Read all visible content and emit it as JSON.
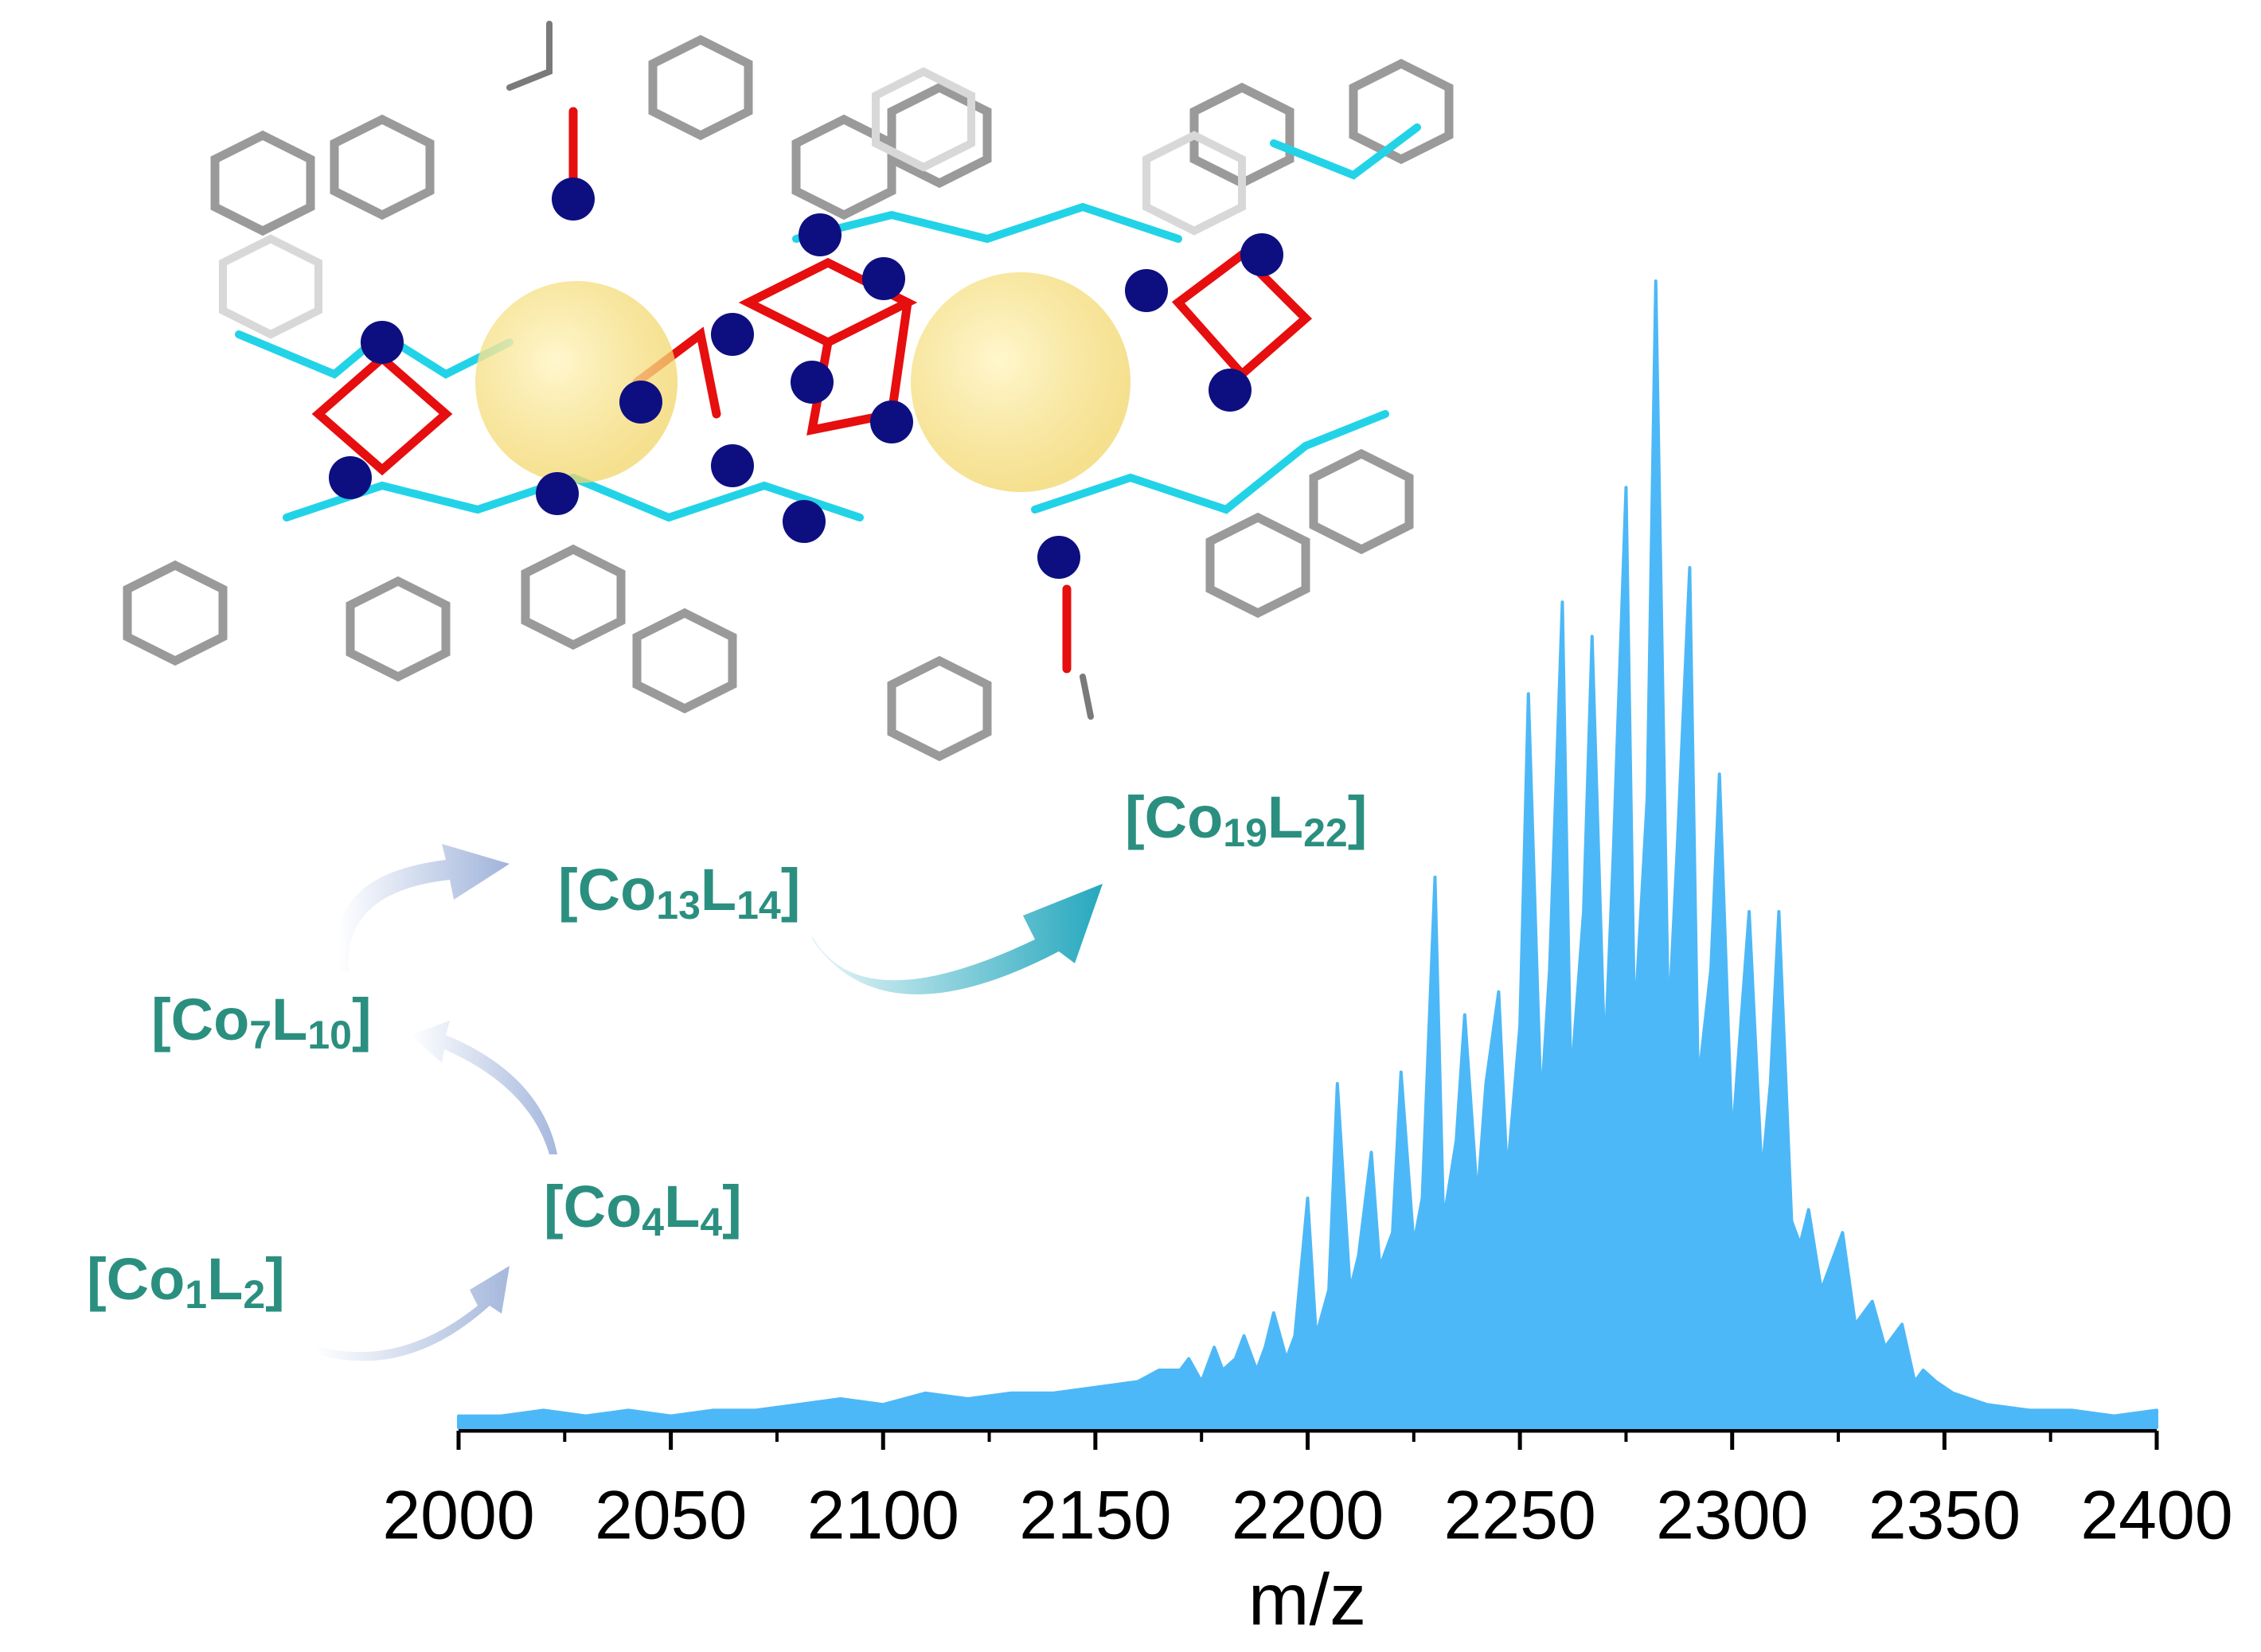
{
  "chart_data": {
    "type": "area",
    "xlabel": "m/z",
    "color": "#4db8f7",
    "xlim": [
      2000,
      2400
    ],
    "ylim": [
      0,
      100
    ],
    "xticks": [
      2000,
      2050,
      2100,
      2150,
      2200,
      2250,
      2300,
      2350,
      2400
    ],
    "xminorticks": [
      2025,
      2075,
      2125,
      2175,
      2225,
      2275,
      2325,
      2375
    ],
    "x": [
      2000,
      2010,
      2020,
      2030,
      2040,
      2050,
      2060,
      2070,
      2080,
      2090,
      2100,
      2110,
      2120,
      2130,
      2140,
      2150,
      2160,
      2165,
      2170,
      2172,
      2175,
      2178,
      2180,
      2183,
      2185,
      2188,
      2190,
      2192,
      2195,
      2197,
      2200,
      2202,
      2205,
      2207,
      2210,
      2212,
      2215,
      2217,
      2220,
      2222,
      2225,
      2227,
      2230,
      2232,
      2235,
      2237,
      2240,
      2242,
      2245,
      2247,
      2250,
      2252,
      2255,
      2257,
      2260,
      2262,
      2265,
      2267,
      2270,
      2272,
      2275,
      2277,
      2280,
      2282,
      2285,
      2287,
      2290,
      2292,
      2295,
      2297,
      2300,
      2302,
      2304,
      2307,
      2309,
      2311,
      2314,
      2316,
      2318,
      2321,
      2323,
      2326,
      2329,
      2331,
      2333,
      2336,
      2338,
      2340,
      2343,
      2345,
      2348,
      2352,
      2356,
      2360,
      2370,
      2380,
      2390,
      2400
    ],
    "values": [
      1,
      1,
      1.5,
      1,
      1.5,
      1,
      1.5,
      1.5,
      2,
      2.5,
      2,
      3,
      2.5,
      3,
      3,
      3.5,
      4,
      5,
      5,
      6,
      4,
      7,
      5,
      6,
      8,
      5,
      7,
      10,
      6,
      8,
      20,
      8,
      12,
      30,
      12,
      15,
      24,
      14,
      17,
      31,
      16,
      20,
      48,
      18,
      25,
      36,
      20,
      30,
      38,
      22,
      35,
      64,
      28,
      40,
      72,
      30,
      45,
      69,
      32,
      50,
      82,
      35,
      55,
      100,
      35,
      50,
      75,
      30,
      40,
      57,
      25,
      35,
      45,
      22,
      30,
      45,
      18,
      16,
      19,
      12,
      14,
      17,
      9,
      10,
      11,
      7,
      8,
      9,
      4,
      5,
      4,
      3,
      2.5,
      2,
      1.5,
      1.5,
      1,
      1.5
    ],
    "annotations": [
      "[Co19L22]",
      "[Co13L14]",
      "[Co7L10]",
      "[Co4L4]",
      "[Co1L2]"
    ]
  }
}
